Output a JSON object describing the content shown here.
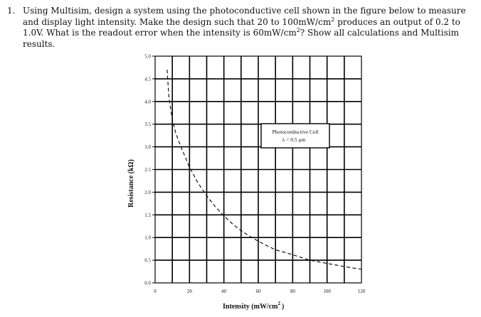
{
  "question": {
    "number": "1.",
    "text_part1": "Using Multisim, design a system using the photoconductive cell shown in the figure below to measure and display light intensity. Make the design such that 20 to 100mW/cm",
    "sup1": "2",
    "text_part2": " produces an output of 0.2 to 1.0V. What is the readout error when the intensity is 60mW/cm",
    "sup2": "2",
    "text_part3": "? Show all calculations and Multisim results."
  },
  "chart_data": {
    "type": "line",
    "xlabel": "Intensity (mW/cm",
    "xlabel_sup": "2",
    "xlabel_close": ")",
    "ylabel": "Resistance (kΩ)",
    "xlim": [
      0,
      120
    ],
    "ylim": [
      0,
      5.0
    ],
    "x_ticks": [
      "0",
      "20",
      "40",
      "60",
      "80",
      "100",
      "120"
    ],
    "y_ticks": [
      "0.0",
      "0.5",
      "1.0",
      "1.5",
      "2.0",
      "2.5",
      "3.0",
      "3.5",
      "4.0",
      "4.5",
      "5.0"
    ],
    "x_grid_step": 10,
    "y_grid_step": 0.5,
    "grid": true,
    "legend_box": [
      "Photoconductive Cell",
      "λ = 0.5  μm"
    ],
    "legend_placement": "upper-right",
    "series": [
      {
        "style": "dashed",
        "color": "#000000",
        "x": [
          7,
          8,
          10,
          12,
          15,
          20,
          25,
          30,
          35,
          40,
          45,
          50,
          55,
          60,
          65,
          70,
          80,
          90,
          100,
          110,
          120
        ],
        "y": [
          4.7,
          4.1,
          3.6,
          3.3,
          3.0,
          2.55,
          2.2,
          1.92,
          1.68,
          1.48,
          1.3,
          1.15,
          1.03,
          0.92,
          0.82,
          0.73,
          0.62,
          0.5,
          0.43,
          0.36,
          0.3
        ]
      }
    ]
  }
}
